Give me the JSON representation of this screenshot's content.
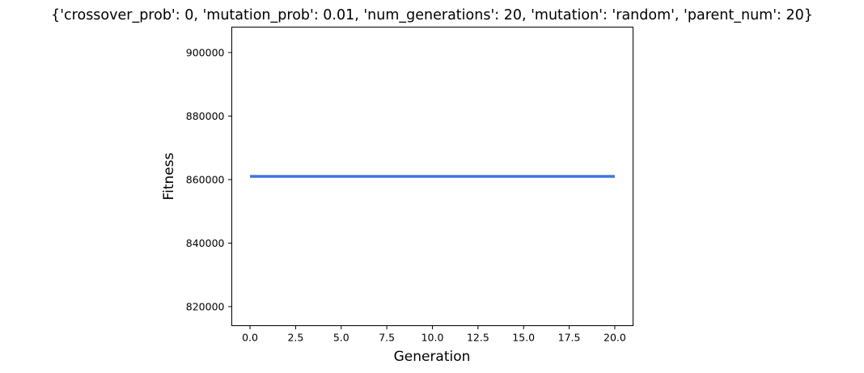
{
  "chart_data": {
    "type": "line",
    "title": "{'crossover_prob': 0, 'mutation_prob': 0.01, 'num_generations': 20, 'mutation': 'random', 'parent_num': 20}",
    "xlabel": "Generation",
    "ylabel": "Fitness",
    "xlim": [
      -1,
      21
    ],
    "ylim": [
      814000,
      908000
    ],
    "xticks": [
      0.0,
      2.5,
      5.0,
      7.5,
      10.0,
      12.5,
      15.0,
      17.5,
      20.0
    ],
    "xtick_labels": [
      "0.0",
      "2.5",
      "5.0",
      "7.5",
      "10.0",
      "12.5",
      "15.0",
      "17.5",
      "20.0"
    ],
    "yticks": [
      820000,
      840000,
      860000,
      880000,
      900000
    ],
    "ytick_labels": [
      "820000",
      "840000",
      "860000",
      "880000",
      "900000"
    ],
    "grid": false,
    "series": [
      {
        "color": "#3f74e0",
        "x": [
          0,
          1,
          2,
          3,
          4,
          5,
          6,
          7,
          8,
          9,
          10,
          11,
          12,
          13,
          14,
          15,
          16,
          17,
          18,
          19,
          20
        ],
        "y": [
          861000,
          861000,
          861000,
          861000,
          861000,
          861000,
          861000,
          861000,
          861000,
          861000,
          861000,
          861000,
          861000,
          861000,
          861000,
          861000,
          861000,
          861000,
          861000,
          861000,
          861000
        ]
      }
    ]
  }
}
